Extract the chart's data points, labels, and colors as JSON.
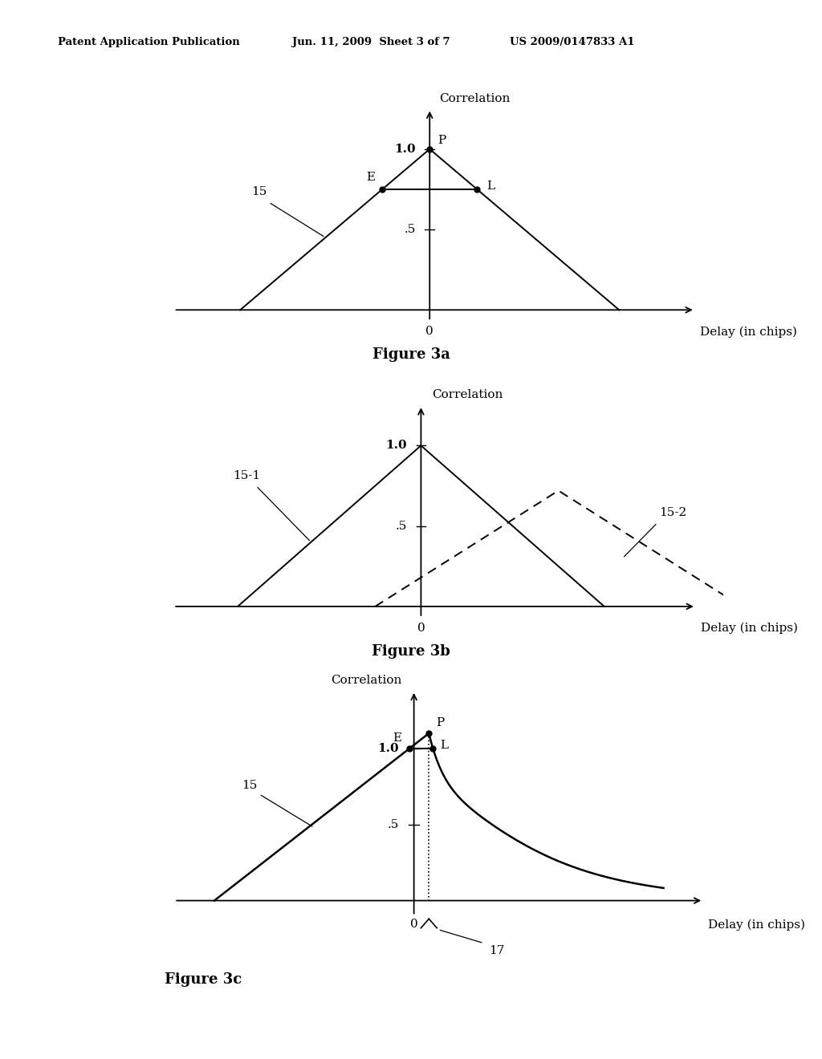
{
  "header_left": "Patent Application Publication",
  "header_mid": "Jun. 11, 2009  Sheet 3 of 7",
  "header_right": "US 2009/0147833 A1",
  "bg_color": "#ffffff",
  "fig3a": {
    "title": "Figure 3a",
    "ylabel": "Correlation",
    "xlabel": "Delay (in chips)",
    "tick_10": "1.0",
    "tick_05": ".5",
    "tick_0": "0",
    "label_15": "15",
    "label_E": "E",
    "label_P": "P",
    "label_L": "L"
  },
  "fig3b": {
    "title": "Figure 3b",
    "ylabel": "Correlation",
    "xlabel": "Delay (in chips)",
    "tick_10": "1.0",
    "tick_05": ".5",
    "tick_0": "0",
    "label_151": "15-1",
    "label_152": "15-2"
  },
  "fig3c": {
    "title": "Figure 3c",
    "ylabel": "Correlation",
    "xlabel": "Delay (in chips)",
    "tick_10": "1.0",
    "tick_05": ".5",
    "tick_0": "0",
    "label_15": "15",
    "label_E": "E",
    "label_P": "P",
    "label_L": "L",
    "label_17": "17"
  }
}
